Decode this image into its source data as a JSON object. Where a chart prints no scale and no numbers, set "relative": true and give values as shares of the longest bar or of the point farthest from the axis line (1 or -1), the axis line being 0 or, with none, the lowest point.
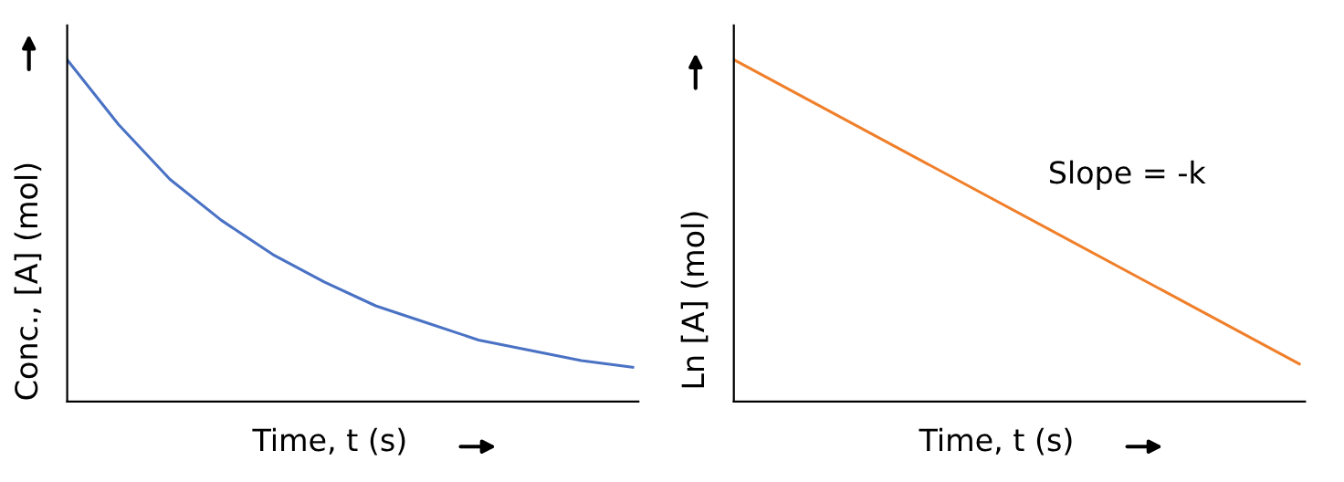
{
  "chart_data": [
    {
      "type": "line",
      "relative": true,
      "xlabel": "Time, t (s)",
      "ylabel": "Conc., [A] (mol)",
      "categories": [
        null,
        null,
        null,
        null,
        null,
        null,
        null,
        null,
        null,
        null,
        null,
        null
      ],
      "series": [
        {
          "color": "#4a72c4",
          "values": [
            1,
            0.81,
            0.65,
            0.53,
            0.43,
            0.35,
            0.28,
            0.23,
            0.18,
            0.15,
            0.12,
            0.1
          ]
        }
      ],
      "legend": false,
      "marker": "none",
      "line_style": "solid"
    },
    {
      "type": "line",
      "relative": true,
      "xlabel": "Time, t (s)",
      "ylabel": "Ln [A] (mol)",
      "categories": [
        null,
        null
      ],
      "series": [
        {
          "color": "#f07f2a",
          "values": [
            1,
            0.11
          ]
        }
      ],
      "annotations": [
        "Slope = -k"
      ],
      "legend": false,
      "marker": "none",
      "line_style": "solid"
    }
  ]
}
